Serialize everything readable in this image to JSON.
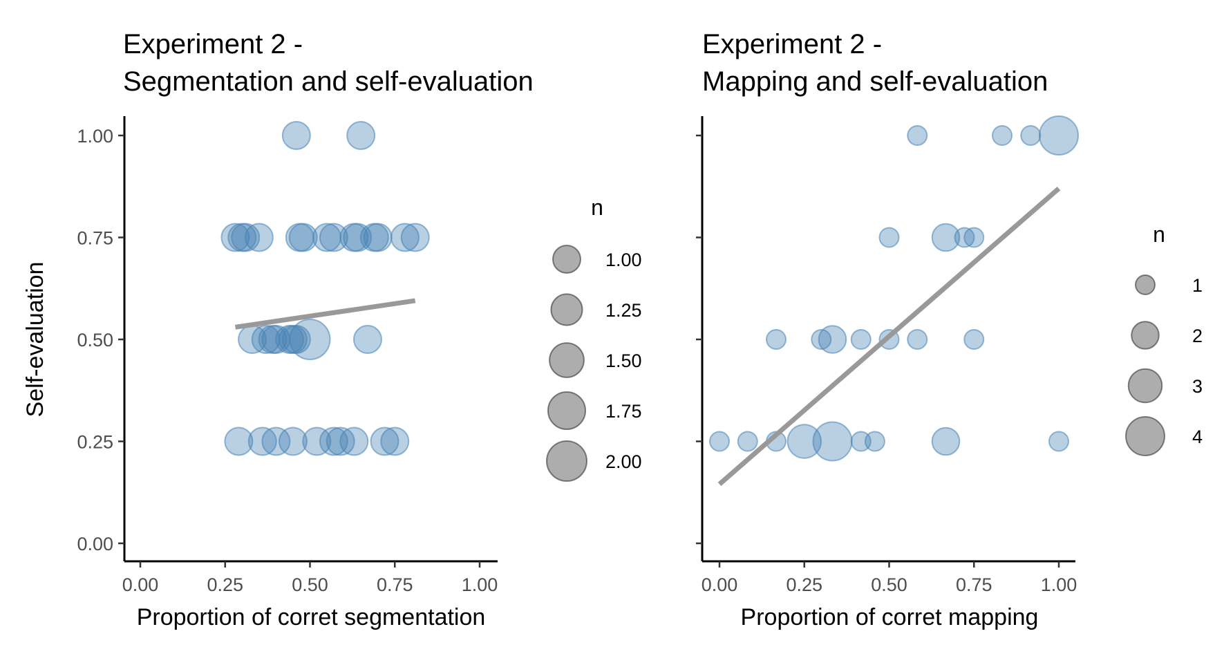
{
  "chart_data": [
    {
      "type": "scatter",
      "title_line1": "Experiment 2 -",
      "title_line2": "Segmentation and self-evaluation",
      "xlabel": "Proportion of corret segmentation",
      "ylabel": "Self-evaluation",
      "xlim": [
        0,
        1
      ],
      "ylim": [
        0,
        1
      ],
      "x_ticks": [
        "0.00",
        "0.25",
        "0.50",
        "0.75",
        "1.00"
      ],
      "y_ticks": [
        "0.00",
        "0.25",
        "0.50",
        "0.75",
        "1.00"
      ],
      "grid": false,
      "point_color": "#4682b4",
      "trend_color": "#999999",
      "trend_line": {
        "x": [
          0.28,
          0.81
        ],
        "y": [
          0.53,
          0.595
        ]
      },
      "legend": {
        "title": "n",
        "placement": "right",
        "entries": [
          {
            "label": "1.00",
            "size": 1.0
          },
          {
            "label": "1.25",
            "size": 1.25
          },
          {
            "label": "1.50",
            "size": 1.5
          },
          {
            "label": "1.75",
            "size": 1.75
          },
          {
            "label": "2.00",
            "size": 2.0
          }
        ]
      },
      "size_range": [
        1,
        2
      ],
      "points": [
        {
          "x": 0.46,
          "y": 1.0,
          "n": 1
        },
        {
          "x": 0.65,
          "y": 1.0,
          "n": 1
        },
        {
          "x": 0.28,
          "y": 0.75,
          "n": 1
        },
        {
          "x": 0.3,
          "y": 0.75,
          "n": 1
        },
        {
          "x": 0.31,
          "y": 0.75,
          "n": 1
        },
        {
          "x": 0.35,
          "y": 0.75,
          "n": 1
        },
        {
          "x": 0.47,
          "y": 0.75,
          "n": 1
        },
        {
          "x": 0.48,
          "y": 0.75,
          "n": 1
        },
        {
          "x": 0.55,
          "y": 0.75,
          "n": 1
        },
        {
          "x": 0.57,
          "y": 0.75,
          "n": 1
        },
        {
          "x": 0.63,
          "y": 0.75,
          "n": 1
        },
        {
          "x": 0.64,
          "y": 0.75,
          "n": 1
        },
        {
          "x": 0.69,
          "y": 0.75,
          "n": 1
        },
        {
          "x": 0.7,
          "y": 0.75,
          "n": 1
        },
        {
          "x": 0.78,
          "y": 0.75,
          "n": 1
        },
        {
          "x": 0.81,
          "y": 0.75,
          "n": 1
        },
        {
          "x": 0.33,
          "y": 0.5,
          "n": 1
        },
        {
          "x": 0.37,
          "y": 0.5,
          "n": 1
        },
        {
          "x": 0.39,
          "y": 0.5,
          "n": 1
        },
        {
          "x": 0.4,
          "y": 0.5,
          "n": 1
        },
        {
          "x": 0.44,
          "y": 0.5,
          "n": 1
        },
        {
          "x": 0.45,
          "y": 0.5,
          "n": 1
        },
        {
          "x": 0.46,
          "y": 0.5,
          "n": 1
        },
        {
          "x": 0.5,
          "y": 0.5,
          "n": 2
        },
        {
          "x": 0.67,
          "y": 0.5,
          "n": 1
        },
        {
          "x": 0.29,
          "y": 0.25,
          "n": 1
        },
        {
          "x": 0.36,
          "y": 0.25,
          "n": 1
        },
        {
          "x": 0.4,
          "y": 0.25,
          "n": 1
        },
        {
          "x": 0.45,
          "y": 0.25,
          "n": 1
        },
        {
          "x": 0.52,
          "y": 0.25,
          "n": 1
        },
        {
          "x": 0.57,
          "y": 0.25,
          "n": 1
        },
        {
          "x": 0.59,
          "y": 0.25,
          "n": 1
        },
        {
          "x": 0.63,
          "y": 0.25,
          "n": 1
        },
        {
          "x": 0.72,
          "y": 0.25,
          "n": 1
        },
        {
          "x": 0.75,
          "y": 0.25,
          "n": 1
        }
      ]
    },
    {
      "type": "scatter",
      "title_line1": "Experiment 2 -",
      "title_line2": "Mapping and self-evaluation",
      "xlabel": "Proportion of corret mapping",
      "ylabel": "",
      "xlim": [
        0,
        1
      ],
      "ylim": [
        0,
        1
      ],
      "x_ticks": [
        "0.00",
        "0.25",
        "0.50",
        "0.75",
        "1.00"
      ],
      "y_ticks": [],
      "grid": false,
      "point_color": "#4682b4",
      "trend_color": "#999999",
      "trend_line": {
        "x": [
          0.0,
          1.0
        ],
        "y": [
          0.145,
          0.87
        ]
      },
      "legend": {
        "title": "n",
        "placement": "right",
        "entries": [
          {
            "label": "1",
            "size": 1
          },
          {
            "label": "2",
            "size": 2
          },
          {
            "label": "3",
            "size": 3
          },
          {
            "label": "4",
            "size": 4
          }
        ]
      },
      "size_range": [
        1,
        4
      ],
      "points": [
        {
          "x": 0.583,
          "y": 1.0,
          "n": 1
        },
        {
          "x": 0.833,
          "y": 1.0,
          "n": 1
        },
        {
          "x": 0.917,
          "y": 1.0,
          "n": 1
        },
        {
          "x": 1.0,
          "y": 1.0,
          "n": 4
        },
        {
          "x": 0.5,
          "y": 0.75,
          "n": 1
        },
        {
          "x": 0.667,
          "y": 0.75,
          "n": 2
        },
        {
          "x": 0.722,
          "y": 0.75,
          "n": 1
        },
        {
          "x": 0.75,
          "y": 0.75,
          "n": 1
        },
        {
          "x": 0.167,
          "y": 0.5,
          "n": 1
        },
        {
          "x": 0.3,
          "y": 0.5,
          "n": 1
        },
        {
          "x": 0.333,
          "y": 0.5,
          "n": 2
        },
        {
          "x": 0.417,
          "y": 0.5,
          "n": 1
        },
        {
          "x": 0.5,
          "y": 0.5,
          "n": 1
        },
        {
          "x": 0.583,
          "y": 0.5,
          "n": 1
        },
        {
          "x": 0.75,
          "y": 0.5,
          "n": 1
        },
        {
          "x": 0.0,
          "y": 0.25,
          "n": 1
        },
        {
          "x": 0.083,
          "y": 0.25,
          "n": 1
        },
        {
          "x": 0.167,
          "y": 0.25,
          "n": 1
        },
        {
          "x": 0.25,
          "y": 0.25,
          "n": 3
        },
        {
          "x": 0.333,
          "y": 0.25,
          "n": 4
        },
        {
          "x": 0.417,
          "y": 0.25,
          "n": 1
        },
        {
          "x": 0.458,
          "y": 0.25,
          "n": 1
        },
        {
          "x": 0.667,
          "y": 0.25,
          "n": 2
        },
        {
          "x": 1.0,
          "y": 0.25,
          "n": 1
        }
      ]
    }
  ]
}
